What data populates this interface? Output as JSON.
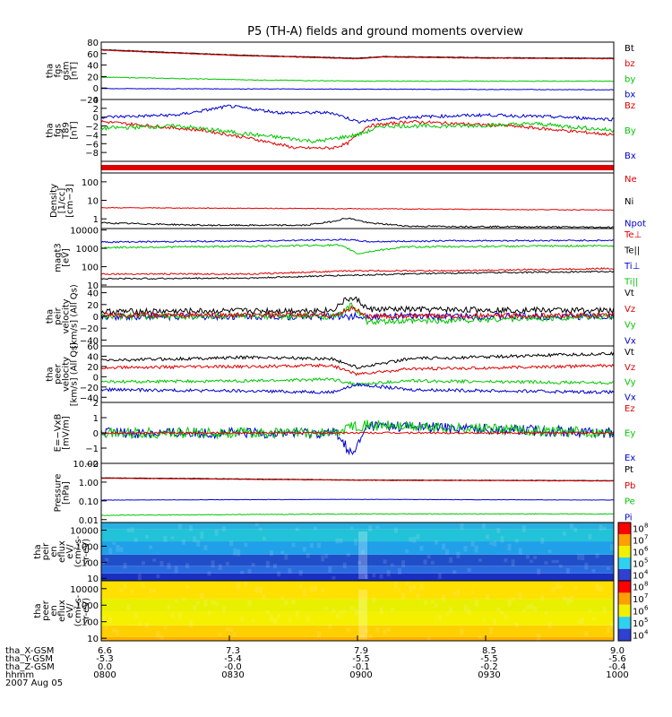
{
  "title": "P5 (TH-A) fields and ground moments overview",
  "colors": {
    "black": "#000000",
    "red": "#e00000",
    "green": "#00c800",
    "blue": "#0000d0"
  },
  "time_axis": {
    "ticks": [
      "0800",
      "0830",
      "0900",
      "0930",
      "1000"
    ],
    "rows": [
      {
        "label": "tha_X-GSM",
        "values": [
          "6.6",
          "7.3",
          "7.9",
          "8.5",
          "9.0"
        ]
      },
      {
        "label": "tha_Y-GSM",
        "values": [
          "-5.3",
          "-5.4",
          "-5.5",
          "-5.5",
          "-5.6"
        ]
      },
      {
        "label": "tha_Z-GSM",
        "values": [
          "0.0",
          "-0.0",
          "-0.1",
          "-0.2",
          "-0.4"
        ]
      },
      {
        "label": "hhmm",
        "values": [
          "0800",
          "0830",
          "0900",
          "0930",
          "1000"
        ]
      }
    ],
    "date": "2007 Aug 05"
  },
  "chart_data": [
    {
      "type": "line",
      "id": "fgs",
      "ylabel": [
        "tha",
        "fgs",
        "gsm",
        "[nT]"
      ],
      "ylim": [
        -20,
        80
      ],
      "scale": "linear",
      "ticks": [
        {
          "v": 80,
          "t": "80"
        },
        {
          "v": 60,
          "t": "60"
        },
        {
          "v": 40,
          "t": "40"
        },
        {
          "v": 20,
          "t": "20"
        },
        {
          "v": 0,
          "t": "0"
        },
        {
          "v": -20,
          "t": "−20"
        }
      ],
      "legend": [
        {
          "t": "Bt",
          "c": "black"
        },
        {
          "t": "bz",
          "c": "red"
        },
        {
          "t": "by",
          "c": "green"
        },
        {
          "t": "bx",
          "c": "blue"
        }
      ],
      "series": [
        {
          "color": "black",
          "x": [
            0,
            0.25,
            0.5,
            0.55,
            0.75,
            1
          ],
          "y": [
            67,
            58,
            52,
            55,
            53,
            52
          ],
          "noise": 0.4
        },
        {
          "color": "red",
          "x": [
            0,
            0.25,
            0.5,
            0.55,
            0.75,
            1
          ],
          "y": [
            66,
            57,
            51,
            54,
            52,
            51
          ],
          "noise": 0.4
        },
        {
          "color": "green",
          "x": [
            0,
            0.3,
            0.5,
            0.7,
            1
          ],
          "y": [
            19,
            14,
            12,
            12,
            12
          ],
          "noise": 0.6
        },
        {
          "color": "blue",
          "x": [
            0,
            0.5,
            1
          ],
          "y": [
            -1,
            -2,
            -3
          ],
          "noise": 0.5
        }
      ]
    },
    {
      "type": "line",
      "id": "fgs_t89",
      "ylabel": [
        "tha",
        "fgs",
        "T89",
        "[nT]"
      ],
      "ylim": [
        -10,
        4
      ],
      "scale": "linear",
      "ticks": [
        {
          "v": 4,
          "t": "4"
        },
        {
          "v": 2,
          "t": "2"
        },
        {
          "v": 0,
          "t": "0"
        },
        {
          "v": -2,
          "t": "−2"
        },
        {
          "v": -4,
          "t": "−4"
        },
        {
          "v": -6,
          "t": "−6"
        },
        {
          "v": -8,
          "t": "−8"
        }
      ],
      "legend": [
        {
          "t": "Bz",
          "c": "red"
        },
        {
          "t": "By",
          "c": "green"
        },
        {
          "t": "Bx",
          "c": "blue"
        }
      ],
      "series": [
        {
          "color": "red",
          "x": [
            0,
            0.1,
            0.2,
            0.3,
            0.38,
            0.45,
            0.48,
            0.52,
            0.6,
            0.7,
            0.8,
            0.9,
            1
          ],
          "y": [
            -1,
            -2,
            -3,
            -5,
            -7,
            -7,
            -6,
            -2,
            -1,
            -1.5,
            -2,
            -3,
            -4
          ],
          "noise": 0.35
        },
        {
          "color": "green",
          "x": [
            0,
            0.15,
            0.3,
            0.42,
            0.5,
            0.55,
            0.7,
            0.85,
            1
          ],
          "y": [
            -2.5,
            -2,
            -4,
            -5.5,
            -4,
            -2,
            -2,
            -1.5,
            -3
          ],
          "noise": 0.45
        },
        {
          "color": "blue",
          "x": [
            0,
            0.15,
            0.25,
            0.35,
            0.45,
            0.5,
            0.6,
            0.75,
            0.9,
            1
          ],
          "y": [
            0,
            0.5,
            2.5,
            1,
            1,
            -1,
            0,
            0.5,
            0,
            -0.5
          ],
          "noise": 0.35
        }
      ]
    },
    {
      "type": "band",
      "id": "mode_bar",
      "color": "red"
    },
    {
      "type": "line",
      "id": "density",
      "ylabel": [
        "Density",
        "[1/cc]",
        "[cm−3]"
      ],
      "ylim": [
        0.3,
        300
      ],
      "scale": "log",
      "ticks": [
        {
          "v": 100,
          "t": "100"
        },
        {
          "v": 10,
          "t": "10"
        },
        {
          "v": 1,
          "t": "1"
        }
      ],
      "legend": [
        {
          "t": "Ne",
          "c": "red"
        },
        {
          "t": "Ni",
          "c": "black"
        },
        {
          "t": "Npot",
          "c": "blue"
        }
      ],
      "series": [
        {
          "color": "red",
          "x": [
            0,
            0.5,
            1
          ],
          "y": [
            4,
            3.5,
            3
          ],
          "noise": 0.02
        },
        {
          "color": "black",
          "x": [
            0,
            0.2,
            0.4,
            0.45,
            0.48,
            0.52,
            0.6,
            1
          ],
          "y": [
            0.6,
            0.45,
            0.45,
            0.7,
            1.1,
            0.6,
            0.4,
            0.35
          ],
          "noise": 0.04
        }
      ]
    },
    {
      "type": "line",
      "id": "temps",
      "ylabel": [
        "magt3",
        "[eV]"
      ],
      "ylim": [
        8,
        12000
      ],
      "scale": "log",
      "ticks": [
        {
          "v": 10000,
          "t": "10000"
        },
        {
          "v": 1000,
          "t": "1000"
        },
        {
          "v": 100,
          "t": "100"
        },
        {
          "v": 10,
          "t": "10"
        }
      ],
      "legend": [
        {
          "t": "Te⊥",
          "c": "red"
        },
        {
          "t": "Te||",
          "c": "black"
        },
        {
          "t": "Ti⊥",
          "c": "blue"
        },
        {
          "t": "Ti||",
          "c": "green"
        }
      ],
      "series": [
        {
          "color": "blue",
          "x": [
            0,
            0.3,
            0.48,
            0.52,
            0.7,
            1
          ],
          "y": [
            2200,
            2500,
            3000,
            2300,
            2600,
            2700
          ],
          "noise": 0.04
        },
        {
          "color": "green",
          "x": [
            0,
            0.3,
            0.46,
            0.5,
            0.6,
            1
          ],
          "y": [
            1100,
            1300,
            1500,
            500,
            1200,
            1400
          ],
          "noise": 0.05
        },
        {
          "color": "red",
          "x": [
            0,
            0.3,
            0.5,
            0.7,
            1
          ],
          "y": [
            40,
            40,
            60,
            60,
            80
          ],
          "noise": 0.04
        },
        {
          "color": "black",
          "x": [
            0,
            0.3,
            0.5,
            0.7,
            1
          ],
          "y": [
            22,
            24,
            35,
            45,
            55
          ],
          "noise": 0.04
        }
      ]
    },
    {
      "type": "line",
      "id": "peir_vel",
      "ylabel": [
        "tha",
        "peir",
        "velocity",
        "[km/s] (All Qs)"
      ],
      "ylim": [
        -50,
        50
      ],
      "scale": "linear",
      "ticks": [
        {
          "v": 40,
          "t": "40"
        },
        {
          "v": 20,
          "t": "20"
        },
        {
          "v": 0,
          "t": "0"
        },
        {
          "v": -20,
          "t": "−20"
        },
        {
          "v": -40,
          "t": "−40"
        }
      ],
      "legend": [
        {
          "t": "Vt",
          "c": "black"
        },
        {
          "t": "Vz",
          "c": "red"
        },
        {
          "t": "Vy",
          "c": "green"
        },
        {
          "t": "Vx",
          "c": "blue"
        }
      ],
      "series": [
        {
          "color": "black",
          "x": [
            0,
            0.45,
            0.48,
            0.5,
            0.52,
            1
          ],
          "y": [
            8,
            10,
            30,
            28,
            12,
            10
          ],
          "noise": 5
        },
        {
          "color": "blue",
          "x": [
            0,
            0.5,
            1
          ],
          "y": [
            0,
            0,
            0
          ],
          "noise": 6
        },
        {
          "color": "green",
          "x": [
            0,
            0.46,
            0.49,
            0.52,
            1
          ],
          "y": [
            0,
            0,
            20,
            -10,
            0
          ],
          "noise": 5
        },
        {
          "color": "red",
          "x": [
            0,
            0.46,
            0.49,
            0.52,
            1
          ],
          "y": [
            2,
            2,
            15,
            0,
            2
          ],
          "noise": 4
        }
      ]
    },
    {
      "type": "line",
      "id": "peer_vel",
      "ylabel": [
        "tha",
        "peer",
        "velocity",
        "[km/s] (All Qs)"
      ],
      "ylim": [
        -50,
        60
      ],
      "scale": "linear",
      "ticks": [
        {
          "v": 60,
          "t": "60"
        },
        {
          "v": 40,
          "t": "40"
        },
        {
          "v": 20,
          "t": "20"
        },
        {
          "v": 0,
          "t": "0"
        },
        {
          "v": -20,
          "t": "−20"
        },
        {
          "v": -40,
          "t": "−40"
        }
      ],
      "legend": [
        {
          "t": "Vt",
          "c": "black"
        },
        {
          "t": "Vz",
          "c": "red"
        },
        {
          "t": "Vy",
          "c": "green"
        },
        {
          "t": "Vx",
          "c": "blue"
        }
      ],
      "series": [
        {
          "color": "black",
          "x": [
            0,
            0.3,
            0.45,
            0.5,
            0.6,
            0.8,
            1
          ],
          "y": [
            32,
            38,
            35,
            18,
            35,
            40,
            45
          ],
          "noise": 3
        },
        {
          "color": "red",
          "x": [
            0,
            0.3,
            0.45,
            0.5,
            0.6,
            0.8,
            1
          ],
          "y": [
            18,
            20,
            22,
            5,
            15,
            18,
            22
          ],
          "noise": 3
        },
        {
          "color": "green",
          "x": [
            0,
            0.3,
            0.45,
            0.5,
            0.6,
            0.8,
            1
          ],
          "y": [
            -10,
            -8,
            -5,
            -15,
            -8,
            -10,
            -12
          ],
          "noise": 3
        },
        {
          "color": "blue",
          "x": [
            0,
            0.3,
            0.45,
            0.5,
            0.6,
            0.8,
            1
          ],
          "y": [
            -25,
            -28,
            -30,
            -15,
            -25,
            -28,
            -30
          ],
          "noise": 3
        }
      ]
    },
    {
      "type": "line",
      "id": "efield",
      "ylabel": [
        "E=−VxB",
        "[mV/m]"
      ],
      "ylim": [
        -2,
        2
      ],
      "scale": "linear",
      "ticks": [
        {
          "v": 2,
          "t": "2"
        },
        {
          "v": 1,
          "t": "1"
        },
        {
          "v": 0,
          "t": "0"
        },
        {
          "v": -1,
          "t": "−1"
        },
        {
          "v": -2,
          "t": "−2"
        }
      ],
      "legend": [
        {
          "t": "Ez",
          "c": "red"
        },
        {
          "t": "Ey",
          "c": "green"
        },
        {
          "t": "Ex",
          "c": "blue"
        }
      ],
      "series": [
        {
          "color": "blue",
          "x": [
            0,
            0.46,
            0.49,
            0.52,
            1
          ],
          "y": [
            0,
            0,
            -1.5,
            0.5,
            0
          ],
          "noise": 0.35
        },
        {
          "color": "green",
          "x": [
            0,
            0.46,
            0.49,
            0.52,
            1
          ],
          "y": [
            0,
            0,
            0.5,
            0.5,
            0
          ],
          "noise": 0.35
        },
        {
          "color": "red",
          "x": [
            0,
            1
          ],
          "y": [
            0,
            0
          ],
          "noise": 0.06
        }
      ]
    },
    {
      "type": "line",
      "id": "pressure",
      "ylabel": [
        "Pressure",
        "[nPa]"
      ],
      "ylim": [
        0.007,
        10
      ],
      "scale": "log",
      "ticks": [
        {
          "v": 10,
          "t": "10.00"
        },
        {
          "v": 1,
          "t": "1.00"
        },
        {
          "v": 0.1,
          "t": "0.10"
        },
        {
          "v": 0.01,
          "t": "0.01"
        }
      ],
      "legend": [
        {
          "t": "Pt",
          "c": "black"
        },
        {
          "t": "Pb",
          "c": "red"
        },
        {
          "t": "Pe",
          "c": "green"
        },
        {
          "t": "Pi",
          "c": "blue"
        }
      ],
      "series": [
        {
          "color": "black",
          "x": [
            0,
            0.5,
            1
          ],
          "y": [
            1.7,
            1.3,
            1.2
          ],
          "noise": 0.01
        },
        {
          "color": "red",
          "x": [
            0,
            0.5,
            1
          ],
          "y": [
            1.6,
            1.25,
            1.15
          ],
          "noise": 0.01
        },
        {
          "color": "blue",
          "x": [
            0,
            0.5,
            1
          ],
          "y": [
            0.11,
            0.12,
            0.11
          ],
          "noise": 0.01
        },
        {
          "color": "green",
          "x": [
            0,
            0.5,
            1
          ],
          "y": [
            0.017,
            0.02,
            0.02
          ],
          "noise": 0.02
        }
      ]
    },
    {
      "type": "heatmap",
      "id": "peir_spec",
      "ylabel": [
        "tha",
        "peir",
        "en",
        "eflux",
        "eV/",
        "(cm²-s-",
        "sr-eV)"
      ],
      "ylim": [
        7,
        30000
      ],
      "scale": "log",
      "ticks": [
        {
          "v": 10000,
          "t": "10000"
        },
        {
          "v": 1000,
          "t": "1000"
        },
        {
          "v": 100,
          "t": "100"
        },
        {
          "v": 10,
          "t": "10"
        }
      ],
      "colorbar": [
        {
          "e": 8,
          "t": "10"
        },
        {
          "e": 7,
          "t": "10"
        },
        {
          "e": 6,
          "t": "10"
        },
        {
          "e": 5,
          "t": "10"
        },
        {
          "e": 4,
          "t": "10"
        }
      ],
      "bands": [
        {
          "y0": 7,
          "y1": 20,
          "color": "#1a2fc0"
        },
        {
          "y0": 20,
          "y1": 60,
          "color": "#2a6ae0"
        },
        {
          "y0": 60,
          "y1": 300,
          "color": "#1f4ec8"
        },
        {
          "y0": 300,
          "y1": 2000,
          "color": "#1fa0e8"
        },
        {
          "y0": 2000,
          "y1": 12000,
          "color": "#22c2d8"
        },
        {
          "y0": 12000,
          "y1": 30000,
          "color": "#2ab0e0"
        }
      ]
    },
    {
      "type": "heatmap",
      "id": "peer_spec",
      "ylabel": [
        "tha",
        "peer",
        "en",
        "eflux",
        "eV/",
        "(cm²-s-",
        "sr-eV)"
      ],
      "ylim": [
        7,
        30000
      ],
      "scale": "log",
      "ticks": [
        {
          "v": 10000,
          "t": "10000"
        },
        {
          "v": 1000,
          "t": "1000"
        },
        {
          "v": 100,
          "t": "100"
        },
        {
          "v": 10,
          "t": "10"
        }
      ],
      "colorbar": [
        {
          "e": 8,
          "t": "10"
        },
        {
          "e": 7,
          "t": "10"
        },
        {
          "e": 6,
          "t": "10"
        },
        {
          "e": 5,
          "t": "10"
        },
        {
          "e": 4,
          "t": "10"
        }
      ],
      "bands": [
        {
          "y0": 7,
          "y1": 12,
          "color": "#ffb000"
        },
        {
          "y0": 12,
          "y1": 60,
          "color": "#ffd000"
        },
        {
          "y0": 60,
          "y1": 400,
          "color": "#f4f000"
        },
        {
          "y0": 400,
          "y1": 2500,
          "color": "#e8f000"
        },
        {
          "y0": 2500,
          "y1": 30000,
          "color": "#ffe000"
        }
      ]
    }
  ]
}
